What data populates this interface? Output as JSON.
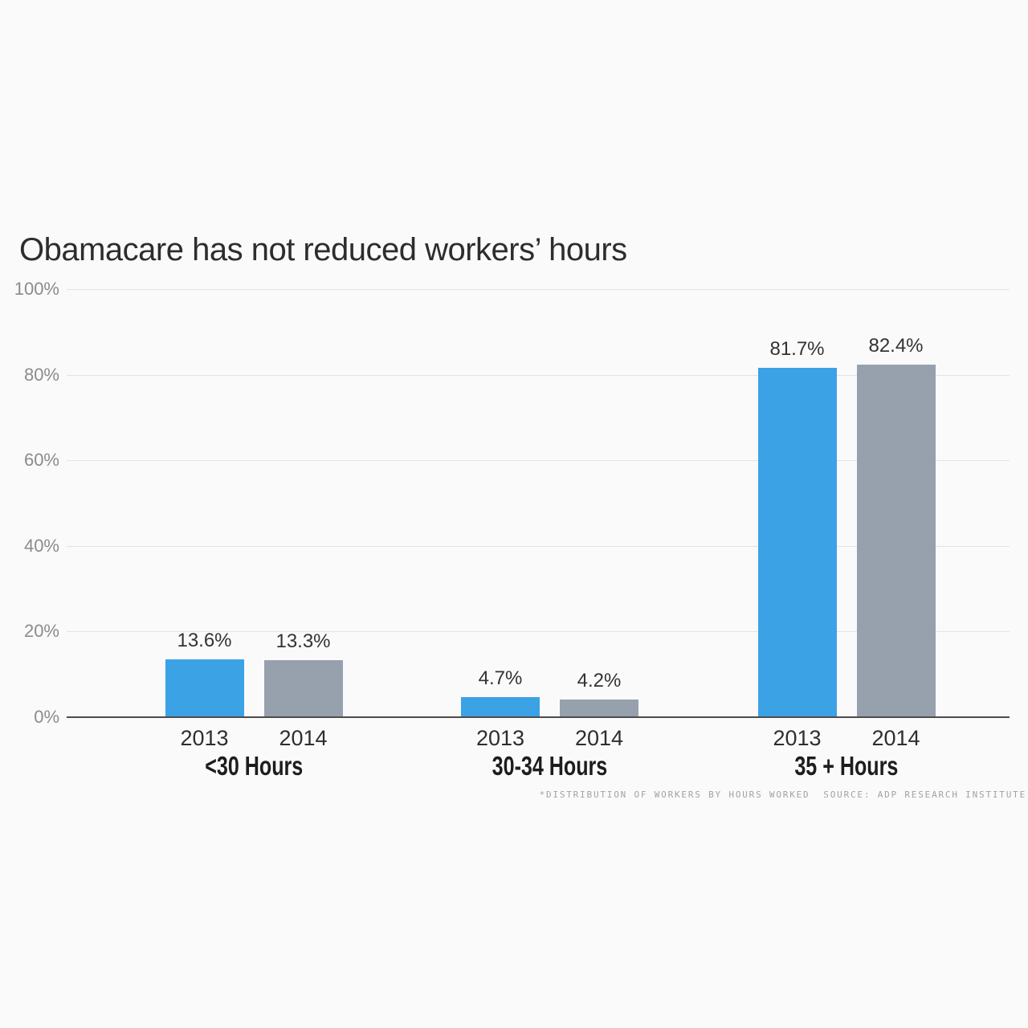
{
  "title": "Obamacare has not reduced workers’ hours",
  "footnote": "*DISTRIBUTION OF WORKERS BY HOURS WORKED  SOURCE: ADP RESEARCH INSTITUTE",
  "colors": {
    "background": "#fafafa",
    "bar_2013": "#3ca2e6",
    "bar_2014": "#97a1ad",
    "gridline": "#e3e3e3",
    "axis_line": "#4c4c4c",
    "tick_text": "#8b8b8b",
    "label_text": "#333333"
  },
  "chart_data": {
    "type": "bar",
    "title": "Obamacare has not reduced workers’ hours",
    "categories": [
      "<30 Hours",
      "30-34 Hours",
      "35 + Hours"
    ],
    "series": [
      {
        "name": "2013",
        "color": "#3ca2e6",
        "values": [
          13.6,
          4.7,
          81.7
        ],
        "labels": [
          "13.6%",
          "4.7%",
          "81.7%"
        ]
      },
      {
        "name": "2014",
        "color": "#97a1ad",
        "values": [
          13.3,
          4.2,
          82.4
        ],
        "labels": [
          "13.3%",
          "4.2%",
          "82.4%"
        ]
      }
    ],
    "y_ticks": [
      "0%",
      "20%",
      "40%",
      "60%",
      "80%",
      "100%"
    ],
    "ylim": [
      0,
      100
    ],
    "xlabel": "",
    "ylabel": "",
    "grid": true,
    "legend_position": "none",
    "footnote": "*DISTRIBUTION OF WORKERS BY HOURS WORKED  SOURCE: ADP RESEARCH INSTITUTE"
  }
}
